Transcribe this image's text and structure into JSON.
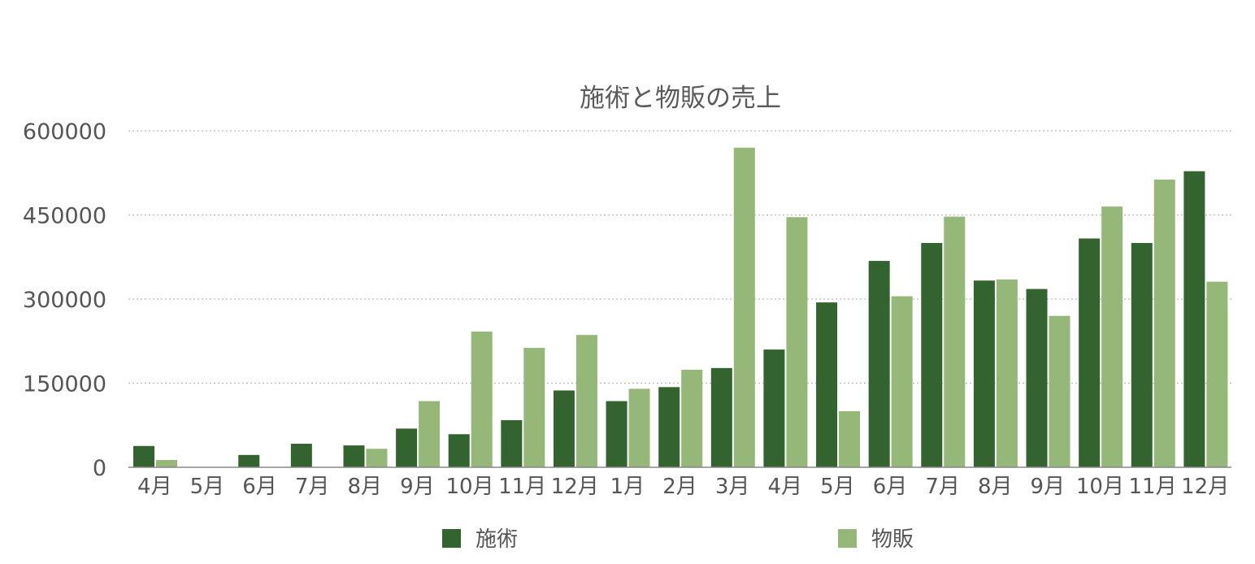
{
  "chart_data": {
    "type": "bar",
    "title": "施術と物販の売上",
    "xlabel": "",
    "ylabel": "",
    "ylim": [
      0,
      600000
    ],
    "yticks": [
      "0",
      "150000",
      "300000",
      "450000",
      "600000"
    ],
    "grid": true,
    "legend_position": "bottom",
    "categories": [
      "4月",
      "5月",
      "6月",
      "7月",
      "8月",
      "9月",
      "10月",
      "11月",
      "12月",
      "1月",
      "2月",
      "3月",
      "4月",
      "5月",
      "6月",
      "7月",
      "8月",
      "9月",
      "10月",
      "11月",
      "12月"
    ],
    "series": [
      {
        "name": "施術",
        "color": "#33632f",
        "values": [
          38000,
          0,
          22000,
          42000,
          39000,
          69000,
          59000,
          84000,
          137000,
          118000,
          143000,
          177000,
          210000,
          294000,
          368000,
          400000,
          333000,
          318000,
          408000,
          400000,
          528000
        ]
      },
      {
        "name": "物販",
        "color": "#95b878",
        "values": [
          13000,
          0,
          0,
          0,
          33000,
          118000,
          242000,
          213000,
          236000,
          140000,
          174000,
          570000,
          446000,
          100000,
          305000,
          447000,
          335000,
          270000,
          465000,
          513000,
          331000
        ]
      }
    ]
  }
}
